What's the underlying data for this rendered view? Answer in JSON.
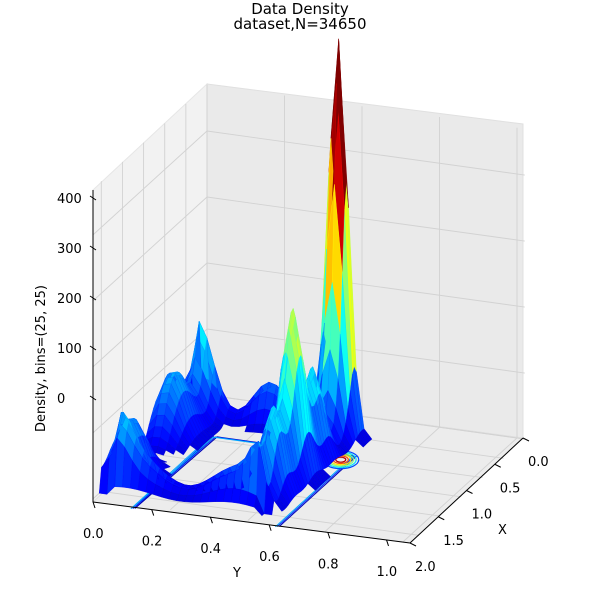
{
  "chart_data": {
    "type": "surface3d",
    "title": "Data Density",
    "subtitle": "dataset,N=34650",
    "xlabel": "X",
    "ylabel": "Y",
    "zlabel": "Density, bins=(25, 25)",
    "x_ticks": [
      "0.0",
      "0.5",
      "1.0",
      "1.5",
      "2.0"
    ],
    "y_ticks": [
      "0.0",
      "0.2",
      "0.4",
      "0.6",
      "0.8",
      "1.0"
    ],
    "z_ticks": [
      "0",
      "100",
      "200",
      "300",
      "400"
    ],
    "xlim": [
      0.0,
      2.0
    ],
    "ylim": [
      0.0,
      1.05
    ],
    "zlim": [
      0,
      420
    ],
    "bins": [
      25,
      25
    ],
    "colormap": "jet",
    "grid": true,
    "peak": {
      "x": 1.0,
      "y": 0.22,
      "z": 400
    },
    "ridges": [
      {
        "x": 1.0,
        "y_range": [
          0.2,
          0.95
        ],
        "z_approx": 180
      },
      {
        "x": 0.05,
        "y_range": [
          0.2,
          0.98
        ],
        "z_approx": 110
      },
      {
        "x_range": [
          0.05,
          1.0
        ],
        "y": 0.22,
        "z_approx": 60
      }
    ]
  }
}
